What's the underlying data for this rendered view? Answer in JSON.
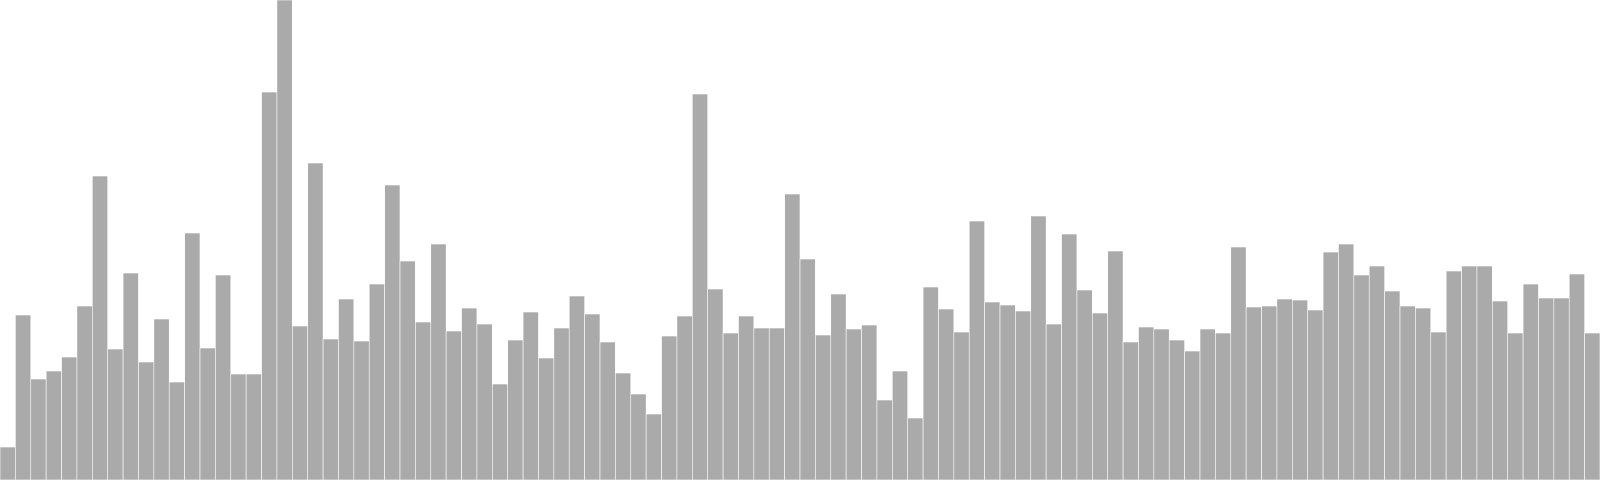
{
  "chart_data": {
    "type": "bar",
    "bar_color": "#aaaaaa",
    "ylim": [
      0,
      480
    ],
    "grid": false,
    "legend": "none",
    "values": [
      33,
      165,
      101,
      109,
      123,
      174,
      304,
      131,
      207,
      118,
      161,
      98,
      247,
      132,
      205,
      106,
      106,
      388,
      480,
      154,
      317,
      141,
      181,
      139,
      196,
      295,
      219,
      158,
      236,
      149,
      172,
      156,
      96,
      140,
      168,
      122,
      152,
      184,
      166,
      138,
      107,
      86,
      66,
      144,
      164,
      386,
      191,
      147,
      164,
      152,
      152,
      286,
      221,
      145,
      186,
      151,
      155,
      80,
      109,
      62,
      193,
      171,
      148,
      259,
      178,
      175,
      169,
      264,
      156,
      246,
      190,
      167,
      229,
      138,
      153,
      151,
      140,
      129,
      151,
      147,
      233,
      173,
      174,
      181,
      180,
      170,
      228,
      236,
      205,
      214,
      189,
      174,
      172,
      148,
      209,
      214,
      214,
      179,
      147,
      196,
      182,
      182,
      206,
      147
    ]
  }
}
